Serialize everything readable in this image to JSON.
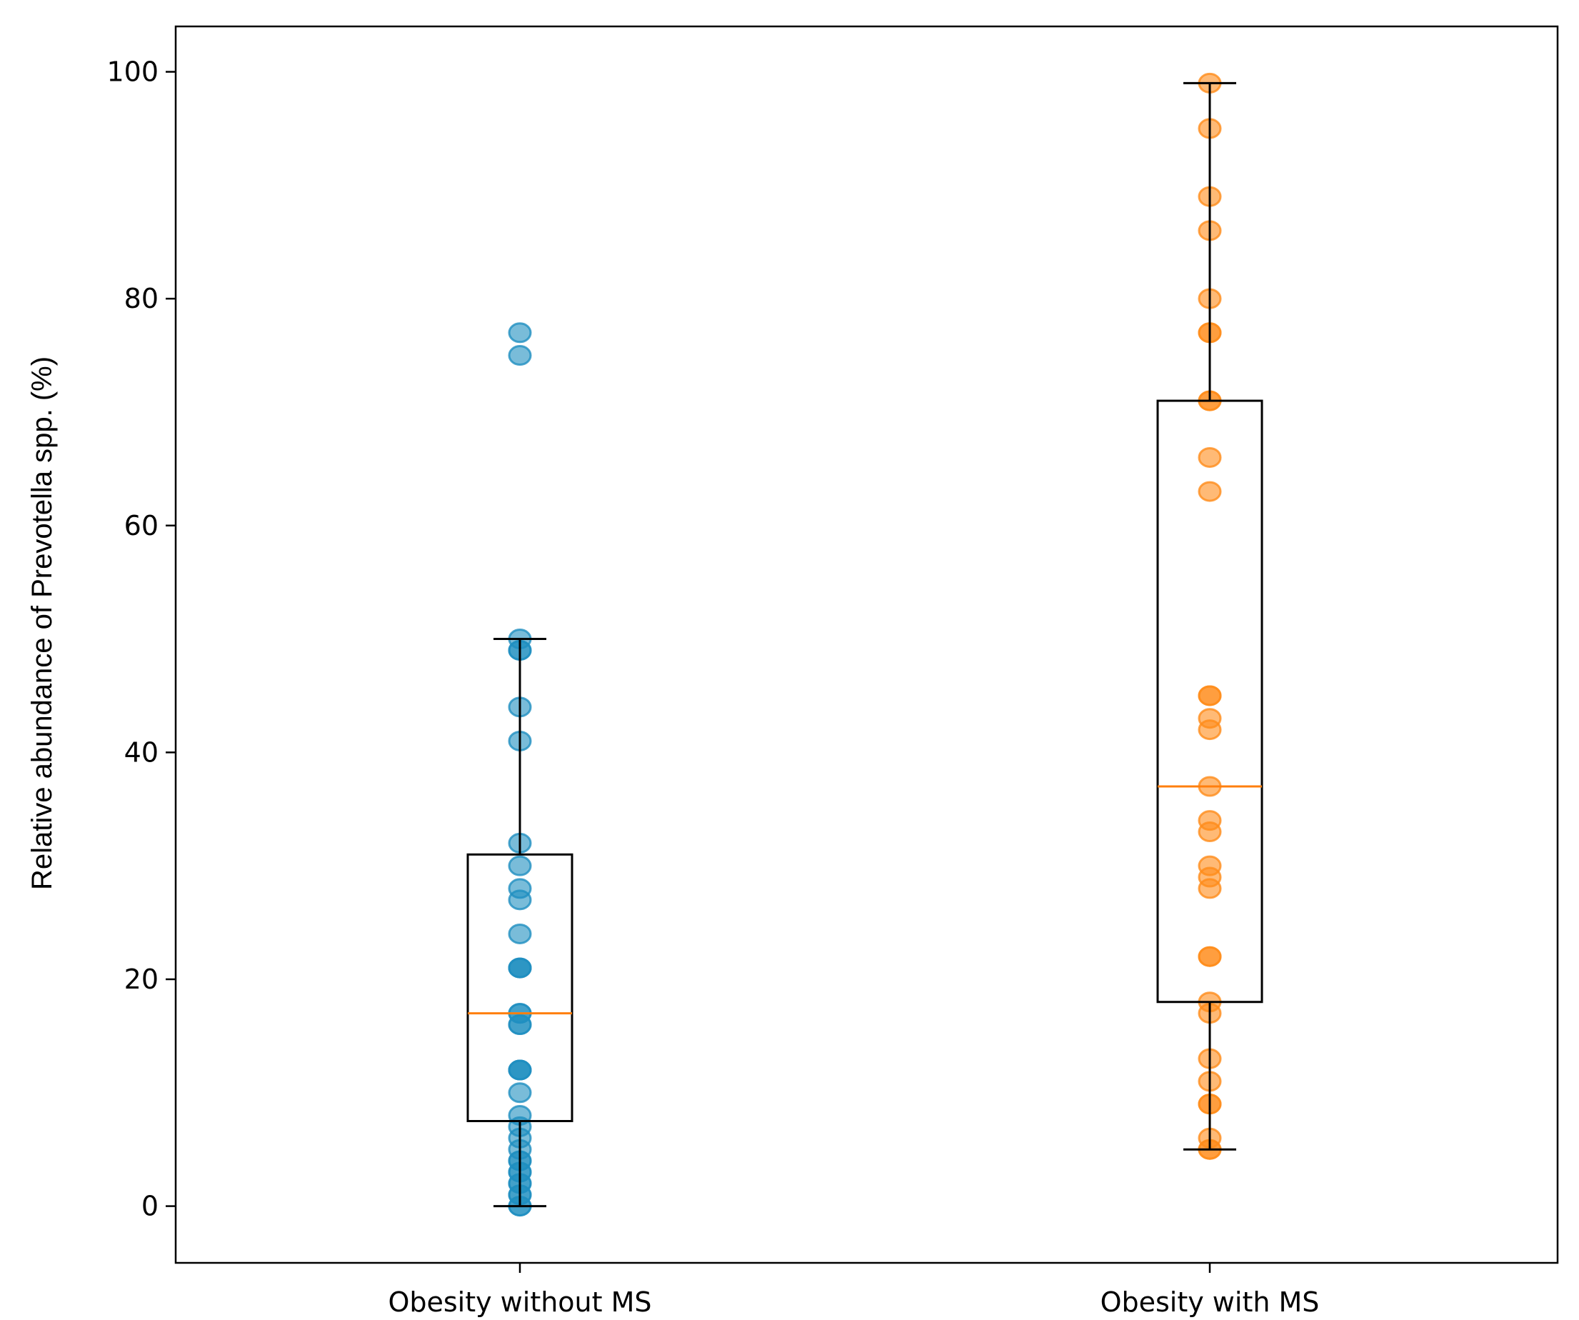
{
  "chart_data": {
    "type": "box",
    "title": "",
    "xlabel": "",
    "ylabel": "Relative abundance of Prevotella spp. (%)",
    "ylim": [
      -5,
      104
    ],
    "yticks": [
      0,
      20,
      40,
      60,
      80,
      100
    ],
    "categories": [
      "Obesity without MS",
      "Obesity with MS"
    ],
    "grid": false,
    "series": [
      {
        "name": "Obesity without MS",
        "color": "#1f8fc0",
        "median_color": "#ff7f0e",
        "box": {
          "whisker_low": 0,
          "q1": 7.5,
          "median": 17,
          "q3": 31,
          "whisker_high": 50
        },
        "points": [
          0,
          0,
          1,
          1,
          2,
          2,
          3,
          3,
          4,
          4,
          5,
          6,
          7,
          8,
          10,
          12,
          12,
          12,
          16,
          16,
          17,
          17,
          21,
          21,
          21,
          24,
          27,
          28,
          30,
          32,
          41,
          44,
          49,
          49,
          50,
          75,
          77
        ]
      },
      {
        "name": "Obesity with MS",
        "color": "#ff8c1a",
        "median_color": "#ff7f0e",
        "box": {
          "whisker_low": 5,
          "q1": 18,
          "median": 37,
          "q3": 71,
          "whisker_high": 99
        },
        "points": [
          5,
          5,
          6,
          9,
          9,
          11,
          13,
          17,
          18,
          22,
          22,
          28,
          29,
          30,
          33,
          34,
          37,
          42,
          43,
          45,
          45,
          63,
          66,
          71,
          71,
          77,
          77,
          80,
          86,
          89,
          95,
          99
        ]
      }
    ]
  }
}
